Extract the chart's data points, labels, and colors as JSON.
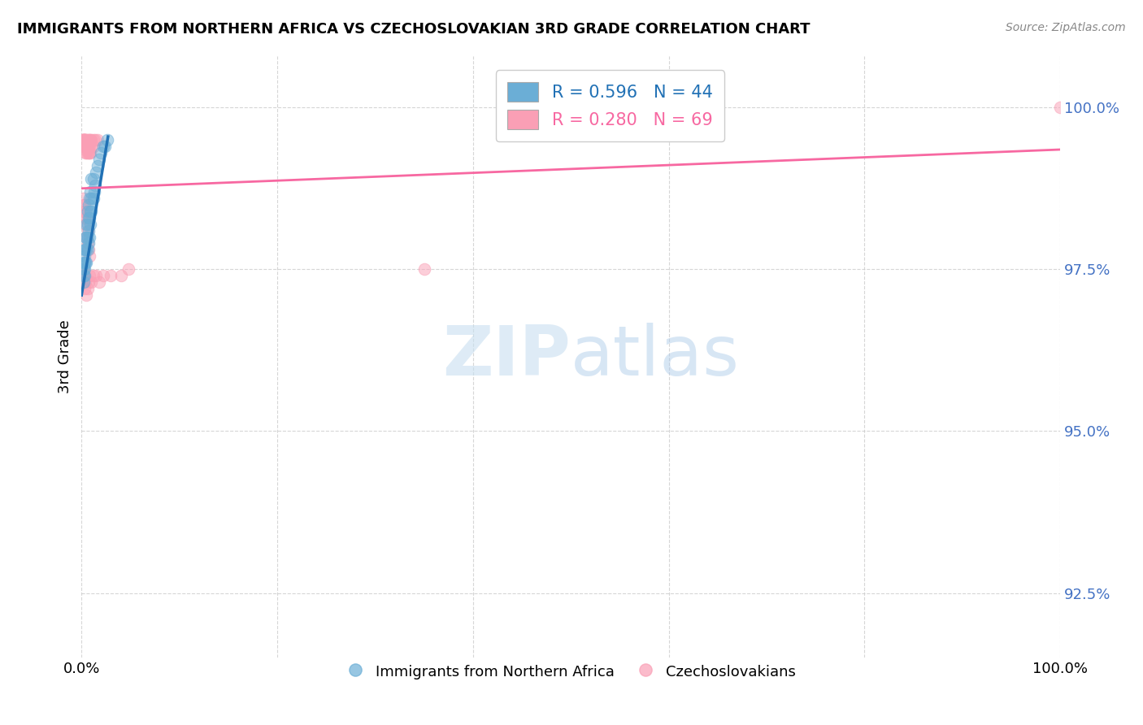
{
  "title": "IMMIGRANTS FROM NORTHERN AFRICA VS CZECHOSLOVAKIAN 3RD GRADE CORRELATION CHART",
  "source": "Source: ZipAtlas.com",
  "ylabel": "3rd Grade",
  "y_ticks": [
    92.5,
    95.0,
    97.5,
    100.0
  ],
  "y_tick_labels": [
    "92.5%",
    "95.0%",
    "97.5%",
    "100.0%"
  ],
  "xlim": [
    0.0,
    1.0
  ],
  "ylim": [
    91.5,
    100.8
  ],
  "legend_blue_r": "R = 0.596",
  "legend_blue_n": "N = 44",
  "legend_pink_r": "R = 0.280",
  "legend_pink_n": "N = 69",
  "blue_color": "#6baed6",
  "pink_color": "#fa9fb5",
  "blue_line_color": "#2171b5",
  "pink_line_color": "#f768a1",
  "blue_scatter": [
    [
      0.002,
      97.3
    ],
    [
      0.002,
      97.4
    ],
    [
      0.002,
      97.5
    ],
    [
      0.002,
      97.6
    ],
    [
      0.003,
      97.4
    ],
    [
      0.003,
      97.5
    ],
    [
      0.003,
      97.6
    ],
    [
      0.003,
      97.7
    ],
    [
      0.003,
      97.8
    ],
    [
      0.004,
      97.6
    ],
    [
      0.004,
      97.8
    ],
    [
      0.004,
      98.0
    ],
    [
      0.005,
      97.6
    ],
    [
      0.005,
      97.8
    ],
    [
      0.005,
      98.0
    ],
    [
      0.005,
      98.2
    ],
    [
      0.006,
      97.8
    ],
    [
      0.006,
      98.0
    ],
    [
      0.006,
      98.2
    ],
    [
      0.006,
      98.4
    ],
    [
      0.007,
      97.9
    ],
    [
      0.007,
      98.1
    ],
    [
      0.007,
      98.3
    ],
    [
      0.007,
      98.5
    ],
    [
      0.008,
      98.0
    ],
    [
      0.008,
      98.3
    ],
    [
      0.008,
      98.6
    ],
    [
      0.009,
      98.2
    ],
    [
      0.009,
      98.4
    ],
    [
      0.009,
      98.7
    ],
    [
      0.01,
      98.4
    ],
    [
      0.01,
      98.6
    ],
    [
      0.01,
      98.9
    ],
    [
      0.012,
      98.6
    ],
    [
      0.012,
      98.9
    ],
    [
      0.013,
      98.7
    ],
    [
      0.014,
      98.8
    ],
    [
      0.015,
      99.0
    ],
    [
      0.016,
      99.1
    ],
    [
      0.018,
      99.2
    ],
    [
      0.02,
      99.3
    ],
    [
      0.022,
      99.4
    ],
    [
      0.024,
      99.4
    ],
    [
      0.026,
      99.5
    ]
  ],
  "pink_scatter": [
    [
      0.001,
      99.4
    ],
    [
      0.001,
      99.5
    ],
    [
      0.001,
      99.5
    ],
    [
      0.001,
      99.5
    ],
    [
      0.002,
      99.4
    ],
    [
      0.002,
      99.5
    ],
    [
      0.002,
      99.5
    ],
    [
      0.002,
      99.5
    ],
    [
      0.003,
      99.4
    ],
    [
      0.003,
      99.5
    ],
    [
      0.003,
      99.5
    ],
    [
      0.003,
      99.5
    ],
    [
      0.004,
      99.3
    ],
    [
      0.004,
      99.4
    ],
    [
      0.004,
      99.5
    ],
    [
      0.004,
      99.5
    ],
    [
      0.005,
      99.3
    ],
    [
      0.005,
      99.4
    ],
    [
      0.005,
      99.5
    ],
    [
      0.006,
      99.3
    ],
    [
      0.006,
      99.4
    ],
    [
      0.006,
      99.5
    ],
    [
      0.007,
      99.3
    ],
    [
      0.007,
      99.4
    ],
    [
      0.007,
      99.5
    ],
    [
      0.008,
      99.3
    ],
    [
      0.008,
      99.4
    ],
    [
      0.008,
      99.5
    ],
    [
      0.009,
      99.3
    ],
    [
      0.009,
      99.5
    ],
    [
      0.01,
      99.4
    ],
    [
      0.01,
      99.5
    ],
    [
      0.012,
      99.4
    ],
    [
      0.012,
      99.5
    ],
    [
      0.014,
      99.5
    ],
    [
      0.016,
      99.5
    ],
    [
      0.001,
      98.5
    ],
    [
      0.002,
      98.4
    ],
    [
      0.002,
      98.6
    ],
    [
      0.003,
      98.3
    ],
    [
      0.003,
      98.5
    ],
    [
      0.004,
      98.2
    ],
    [
      0.004,
      98.4
    ],
    [
      0.005,
      98.0
    ],
    [
      0.005,
      98.3
    ],
    [
      0.006,
      97.9
    ],
    [
      0.006,
      98.1
    ],
    [
      0.007,
      97.8
    ],
    [
      0.008,
      97.7
    ],
    [
      0.001,
      97.4
    ],
    [
      0.002,
      97.3
    ],
    [
      0.002,
      97.5
    ],
    [
      0.003,
      97.2
    ],
    [
      0.003,
      97.4
    ],
    [
      0.004,
      97.3
    ],
    [
      0.005,
      97.1
    ],
    [
      0.006,
      97.2
    ],
    [
      0.007,
      97.3
    ],
    [
      0.008,
      97.4
    ],
    [
      0.01,
      97.3
    ],
    [
      0.012,
      97.4
    ],
    [
      0.015,
      97.4
    ],
    [
      0.018,
      97.3
    ],
    [
      0.022,
      97.4
    ],
    [
      0.03,
      97.4
    ],
    [
      0.04,
      97.4
    ],
    [
      0.048,
      97.5
    ],
    [
      0.35,
      97.5
    ],
    [
      1.0,
      100.0
    ]
  ],
  "watermark_zip": "ZIP",
  "watermark_atlas": "atlas",
  "background_color": "#ffffff",
  "grid_color": "#cccccc",
  "blue_line_x": [
    0.0,
    0.027
  ],
  "blue_line_y": [
    97.1,
    99.55
  ],
  "pink_line_x": [
    0.0,
    1.0
  ],
  "pink_line_y": [
    98.75,
    99.35
  ]
}
